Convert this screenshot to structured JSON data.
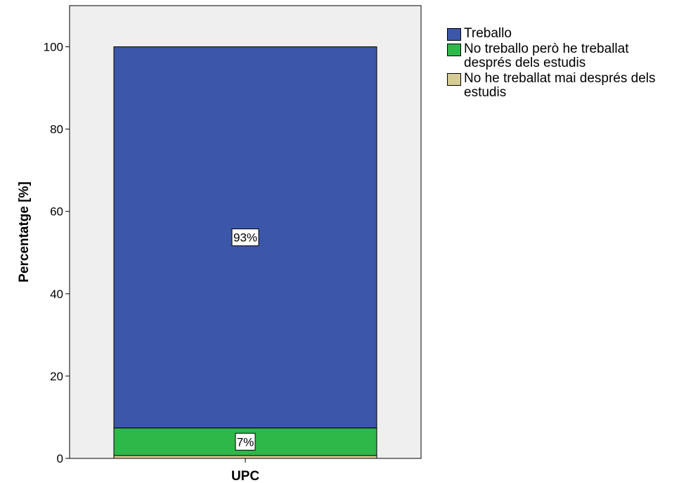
{
  "chart_data": {
    "type": "bar",
    "stacked": true,
    "categories": [
      "UPC"
    ],
    "series": [
      {
        "name": "No he treballat mai després dels estudis",
        "values": [
          0.7
        ],
        "color": "#d6cd96"
      },
      {
        "name": "No treballo però he treballat després dels estudis",
        "values": [
          6.7
        ],
        "color": "#2fb84a"
      },
      {
        "name": "Treballo",
        "values": [
          92.6
        ],
        "color": "#3c57aa"
      }
    ],
    "data_labels": [
      {
        "series": "Treballo",
        "text": "93%"
      },
      {
        "series": "No treballo però he treballat després dels estudis",
        "text": "7%"
      }
    ],
    "xlabel": "UPC",
    "ylabel": "Percentatge [%]",
    "ylim": [
      0,
      110
    ],
    "yticks": [
      0,
      20,
      40,
      60,
      80,
      100
    ],
    "grid": false,
    "legend_position": "right",
    "plot_background": "#efefef"
  },
  "legend": [
    {
      "label": "Treballo",
      "color": "#3c57aa"
    },
    {
      "label": "No treballo però he treballat després dels estudis",
      "color": "#2fb84a"
    },
    {
      "label": "No he treballat mai després dels estudis",
      "color": "#d6cd96"
    }
  ]
}
